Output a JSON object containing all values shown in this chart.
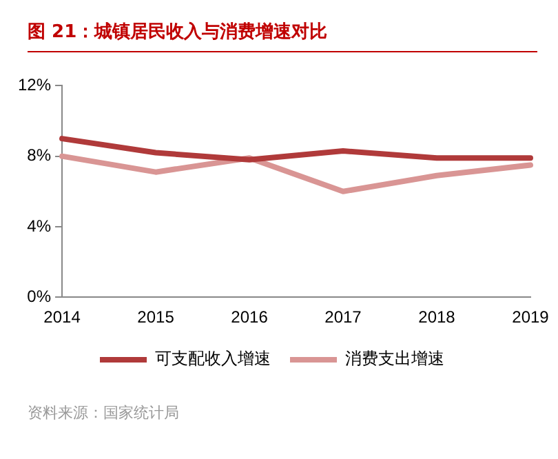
{
  "chart_data": {
    "type": "line",
    "title": "图 21：城镇居民收入与消费增速对比",
    "categories": [
      "2014",
      "2015",
      "2016",
      "2017",
      "2018",
      "2019"
    ],
    "series": [
      {
        "name": "可支配收入增速",
        "color": "#b03a3a",
        "values": [
          9.0,
          8.2,
          7.8,
          8.3,
          7.9,
          7.9
        ]
      },
      {
        "name": "消费支出增速",
        "color": "#d99594",
        "values": [
          8.0,
          7.1,
          7.9,
          6.0,
          6.9,
          7.5
        ]
      }
    ],
    "ylim": [
      0,
      12
    ],
    "yticks": [
      {
        "value": 0,
        "label": "0%"
      },
      {
        "value": 4,
        "label": "4%"
      },
      {
        "value": 8,
        "label": "8%"
      },
      {
        "value": 12,
        "label": "12%"
      }
    ],
    "grid": false,
    "legend": "bottom",
    "marker": "none",
    "line_style": "solid",
    "annotations": [
      "资料来源：国家统计局"
    ]
  }
}
